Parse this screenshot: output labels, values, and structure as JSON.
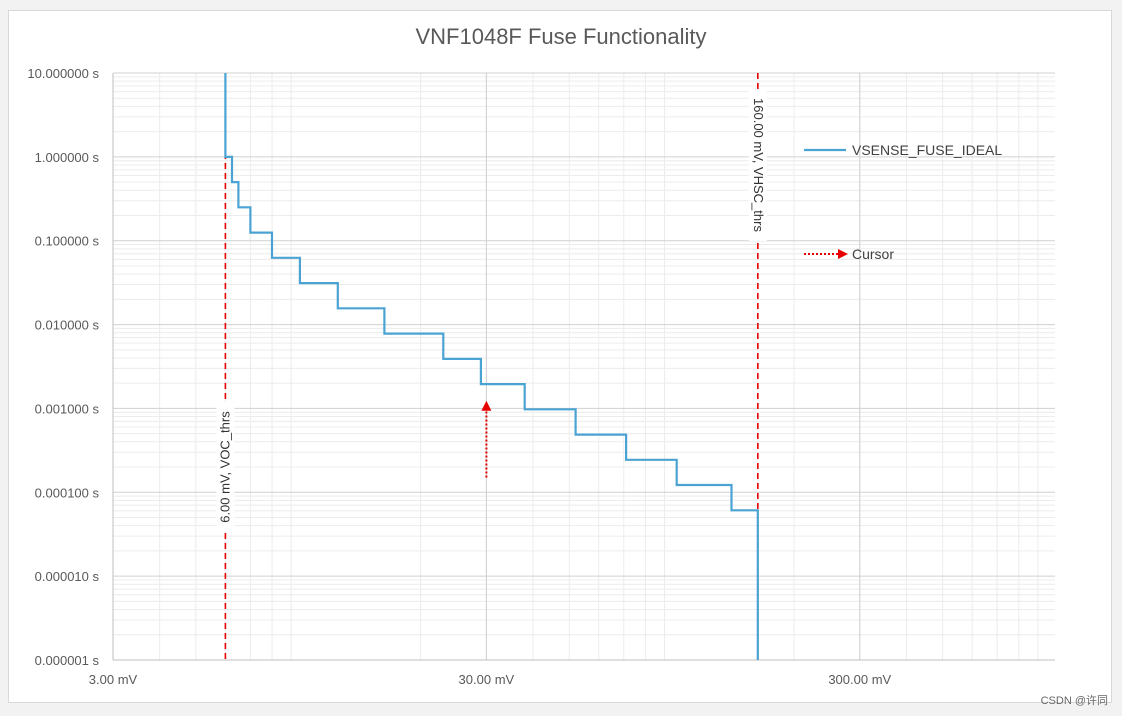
{
  "chart_data": {
    "type": "line",
    "title": "VNF1048F Fuse Functionality",
    "x_scale": "log",
    "y_scale": "log",
    "xlim": [
      3,
      1000
    ],
    "ylim": [
      1e-06,
      10
    ],
    "x_ticks": [
      {
        "value": 3,
        "label": "3.00 mV"
      },
      {
        "value": 30,
        "label": "30.00 mV"
      },
      {
        "value": 300,
        "label": "300.00 mV"
      }
    ],
    "y_ticks": [
      {
        "value": 10,
        "label": "10.000000 s"
      },
      {
        "value": 1,
        "label": "1.000000 s"
      },
      {
        "value": 0.1,
        "label": "0.100000 s"
      },
      {
        "value": 0.01,
        "label": "0.010000 s"
      },
      {
        "value": 0.001,
        "label": "0.001000 s"
      },
      {
        "value": 0.0001,
        "label": "0.000100 s"
      },
      {
        "value": 1e-05,
        "label": "0.000010 s"
      },
      {
        "value": 1e-06,
        "label": "0.000001 s"
      }
    ],
    "grid": true,
    "series": [
      {
        "name": "VSENSE_FUSE_IDEAL",
        "color": "#4ba3d3",
        "step": "post",
        "points": [
          [
            6.0,
            10
          ],
          [
            6.0,
            1.0
          ],
          [
            6.25,
            1.0
          ],
          [
            6.25,
            0.5
          ],
          [
            6.5,
            0.5
          ],
          [
            6.5,
            0.25
          ],
          [
            7.0,
            0.25
          ],
          [
            7.0,
            0.125
          ],
          [
            8.0,
            0.125
          ],
          [
            8.0,
            0.0625
          ],
          [
            9.5,
            0.0625
          ],
          [
            9.5,
            0.03125
          ],
          [
            12.0,
            0.03125
          ],
          [
            12.0,
            0.015625
          ],
          [
            16.0,
            0.015625
          ],
          [
            16.0,
            0.0078125
          ],
          [
            23.0,
            0.0078125
          ],
          [
            23.0,
            0.0039
          ],
          [
            29.0,
            0.0039
          ],
          [
            29.0,
            0.00195
          ],
          [
            38.0,
            0.00195
          ],
          [
            38.0,
            0.000977
          ],
          [
            52.0,
            0.000977
          ],
          [
            52.0,
            0.000488
          ],
          [
            71.0,
            0.000488
          ],
          [
            71.0,
            0.000244
          ],
          [
            97.0,
            0.000244
          ],
          [
            97.0,
            0.000122
          ],
          [
            136.0,
            0.000122
          ],
          [
            136.0,
            6.1e-05
          ],
          [
            160.0,
            6.1e-05
          ],
          [
            160.0,
            1e-06
          ]
        ]
      }
    ],
    "vlines": [
      {
        "x": 6.0,
        "label": "6.00 mV, VOC_thrs",
        "color": "#e60000",
        "style": "dashed"
      },
      {
        "x": 160.0,
        "label": "160.00 mV, VHSC_thrs",
        "color": "#e60000",
        "style": "dashed"
      }
    ],
    "cursor": {
      "name": "Cursor",
      "x": 30.0,
      "y_from": 0.00015,
      "y_to": 0.0012,
      "color": "#e60000",
      "style": "dotted"
    },
    "legend": [
      {
        "name": "VSENSE_FUSE_IDEAL",
        "kind": "line",
        "color": "#4ba3d3"
      },
      {
        "name": "Cursor",
        "kind": "dotted-arrow",
        "color": "#e60000"
      }
    ],
    "legend_position": "right"
  },
  "watermark": "CSDN @许同"
}
